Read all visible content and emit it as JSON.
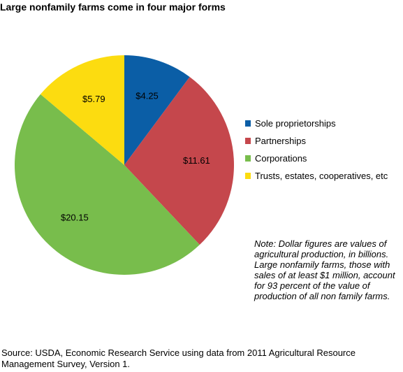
{
  "chart_data": {
    "type": "pie",
    "title": "Large nonfamily farms come in four major forms",
    "legend_position": "right",
    "slices": [
      {
        "label": "Sole proprietorships",
        "value": 4.25,
        "display": "$4.25",
        "color": "#0b5ea6"
      },
      {
        "label": "Partnerships",
        "value": 11.61,
        "display": "$11.61",
        "color": "#c5474c"
      },
      {
        "label": "Corporations",
        "value": 20.15,
        "display": "$20.15",
        "color": "#78bd4c"
      },
      {
        "label": "Trusts, estates, cooperatives, etc",
        "value": 5.79,
        "display": "$5.79",
        "color": "#fcdc10"
      }
    ]
  },
  "note": "Note: Dollar figures are values of agricultural production, in billions. Large nonfamily farms, those with sales of at least $1 million, account for 93 percent of the value of production of all non family farms.",
  "source": "Source: USDA, Economic Research Service using data from 2011 Agricultural Resource Management Survey, Version 1."
}
